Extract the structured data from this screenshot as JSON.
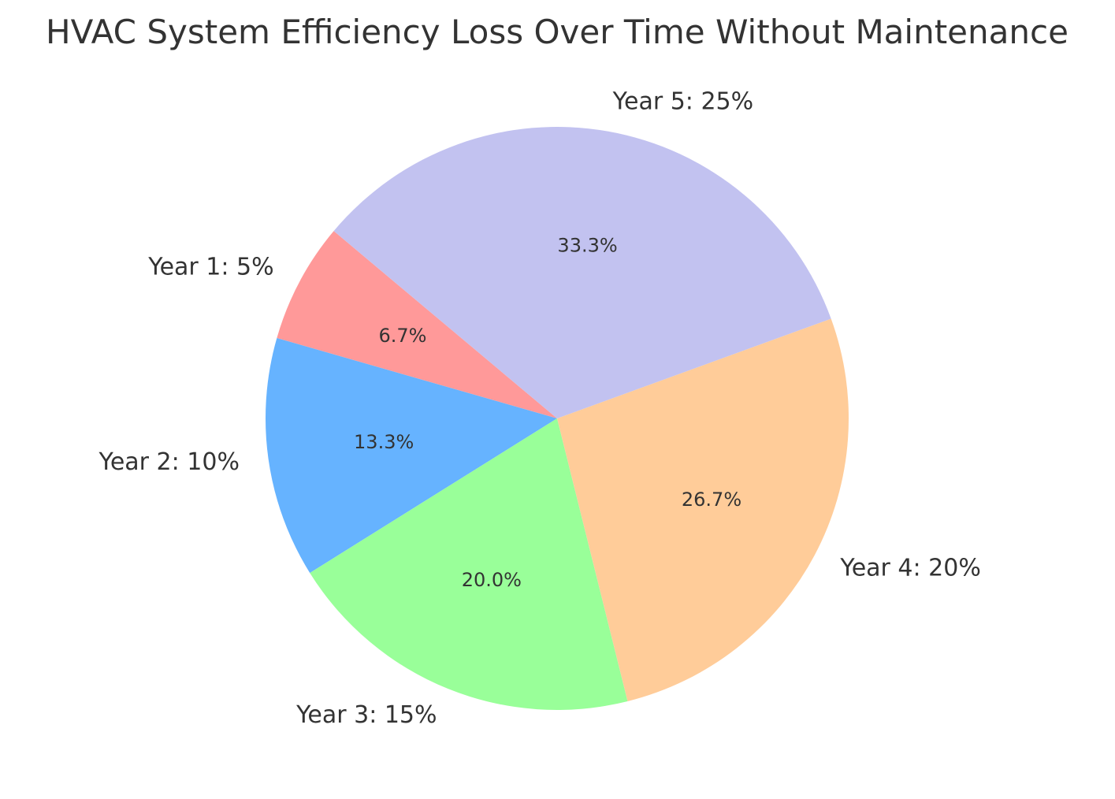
{
  "chart_data": {
    "type": "pie",
    "title": "HVAC System Efficiency Loss Over Time Without Maintenance",
    "labels": [
      "Year 1: 5%",
      "Year 2: 10%",
      "Year 3: 15%",
      "Year 4: 20%",
      "Year 5: 25%"
    ],
    "values": [
      5,
      10,
      15,
      20,
      25
    ],
    "percent_labels": [
      "6.7%",
      "13.3%",
      "20.0%",
      "26.7%",
      "33.3%"
    ],
    "colors": [
      "#ff9999",
      "#66b3ff",
      "#99ff99",
      "#ffcc99",
      "#c2c2f0"
    ],
    "start_angle_deg": 140,
    "direction": "counterclockwise"
  }
}
